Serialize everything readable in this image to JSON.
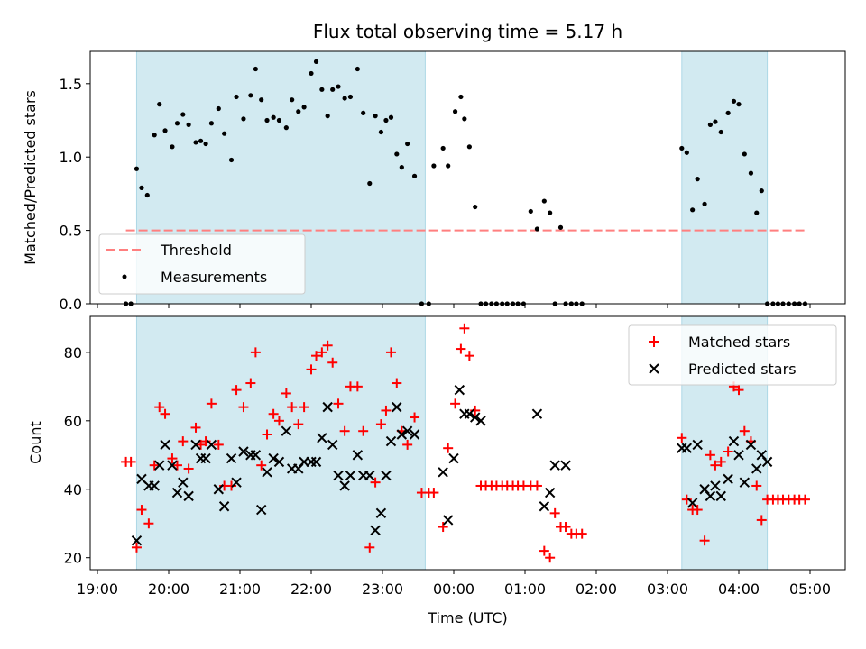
{
  "chart_data": [
    {
      "type": "scatter",
      "title": "Flux total observing time = 5.17 h",
      "xlabel": "",
      "ylabel": "Matched/Predicted stars",
      "ylim": [
        0,
        1.72
      ],
      "xlim": [
        19.0,
        5.5
      ],
      "yticks": [
        "0.0",
        "0.5",
        "1.0",
        "1.5"
      ],
      "ytick_values": [
        0,
        0.5,
        1.0,
        1.5
      ],
      "shaded_intervals_hours": [
        [
          19.55,
          23.6
        ],
        [
          27.2,
          28.4
        ]
      ],
      "threshold": {
        "name": "Threshold",
        "value": 0.5,
        "x_start": 19.4,
        "x_end": 28.95,
        "color": "#ff7f7f"
      },
      "series": [
        {
          "name": "Measurements",
          "color": "#000000",
          "x": [
            19.4,
            19.47,
            19.55,
            19.62,
            19.7,
            19.8,
            19.87,
            19.95,
            20.05,
            20.12,
            20.2,
            20.28,
            20.38,
            20.45,
            20.52,
            20.6,
            20.7,
            20.78,
            20.88,
            20.95,
            21.05,
            21.15,
            21.22,
            21.3,
            21.38,
            21.47,
            21.55,
            21.65,
            21.73,
            21.82,
            21.9,
            22.0,
            22.07,
            22.15,
            22.23,
            22.3,
            22.38,
            22.47,
            22.55,
            22.65,
            22.73,
            22.82,
            22.9,
            22.98,
            23.05,
            23.12,
            23.2,
            23.27,
            23.35,
            23.45,
            23.55,
            23.65,
            23.72,
            23.85,
            23.92,
            24.02,
            24.1,
            24.15,
            24.22,
            24.3,
            24.38,
            24.45,
            24.53,
            24.6,
            24.68,
            24.75,
            24.83,
            24.9,
            24.98,
            25.08,
            25.17,
            25.27,
            25.35,
            25.42,
            25.5,
            25.57,
            25.65,
            25.72,
            25.8,
            27.2,
            27.27,
            27.35,
            27.42,
            27.52,
            27.6,
            27.67,
            27.75,
            27.85,
            27.93,
            28.0,
            28.08,
            28.17,
            28.25,
            28.32,
            28.4,
            28.48,
            28.55,
            28.62,
            28.7,
            28.78,
            28.85,
            28.93
          ],
          "y": [
            0,
            0,
            0.92,
            0.79,
            0.74,
            1.15,
            1.36,
            1.18,
            1.07,
            1.23,
            1.29,
            1.22,
            1.1,
            1.11,
            1.09,
            1.23,
            1.33,
            1.16,
            0.98,
            1.41,
            1.26,
            1.42,
            1.6,
            1.39,
            1.25,
            1.27,
            1.25,
            1.2,
            1.39,
            1.31,
            1.34,
            1.57,
            1.65,
            1.46,
            1.28,
            1.46,
            1.48,
            1.4,
            1.41,
            1.6,
            1.3,
            0.82,
            1.28,
            1.17,
            1.25,
            1.27,
            1.02,
            0.93,
            1.09,
            0.87,
            0,
            0,
            0.94,
            1.06,
            0.94,
            1.31,
            1.41,
            1.26,
            1.07,
            0.66,
            0,
            0,
            0,
            0,
            0,
            0,
            0,
            0,
            0,
            0.63,
            0.51,
            0.7,
            0.62,
            0,
            0.52,
            0,
            0,
            0,
            0,
            1.06,
            1.03,
            0.64,
            0.85,
            0.68,
            1.22,
            1.24,
            1.17,
            1.3,
            1.38,
            1.36,
            1.02,
            0.89,
            0.62,
            0.77,
            0,
            0,
            0,
            0,
            0,
            0,
            0,
            0
          ]
        }
      ],
      "legend": [
        "Threshold",
        "Measurements"
      ]
    },
    {
      "type": "scatter",
      "title": "",
      "xlabel": "Time (UTC)",
      "ylabel": "Count",
      "ylim": [
        16.5,
        90.5
      ],
      "xlim": [
        19.0,
        5.5
      ],
      "yticks": [
        "20",
        "40",
        "60",
        "80"
      ],
      "ytick_values": [
        20,
        40,
        60,
        80
      ],
      "xticks": [
        "19:00",
        "20:00",
        "21:00",
        "22:00",
        "23:00",
        "00:00",
        "01:00",
        "02:00",
        "03:00",
        "04:00",
        "05:00"
      ],
      "xtick_hours": [
        19,
        20,
        21,
        22,
        23,
        24,
        25,
        26,
        27,
        28,
        29
      ],
      "shaded_intervals_hours": [
        [
          19.55,
          23.6
        ],
        [
          27.2,
          28.4
        ]
      ],
      "series": [
        {
          "name": "Matched stars",
          "color": "#ff0000",
          "marker": "+",
          "x": [
            19.4,
            19.47,
            19.55,
            19.62,
            19.72,
            19.8,
            19.87,
            19.95,
            20.05,
            20.12,
            20.2,
            20.28,
            20.38,
            20.45,
            20.52,
            20.6,
            20.7,
            20.78,
            20.88,
            20.95,
            21.05,
            21.15,
            21.22,
            21.3,
            21.38,
            21.47,
            21.55,
            21.65,
            21.73,
            21.82,
            21.9,
            22.0,
            22.07,
            22.15,
            22.23,
            22.3,
            22.38,
            22.47,
            22.55,
            22.65,
            22.73,
            22.82,
            22.9,
            22.98,
            23.05,
            23.12,
            23.2,
            23.27,
            23.35,
            23.45,
            23.55,
            23.65,
            23.72,
            23.85,
            23.92,
            24.02,
            24.1,
            24.15,
            24.22,
            24.3,
            24.38,
            24.45,
            24.53,
            24.6,
            24.68,
            24.75,
            24.83,
            24.9,
            24.98,
            25.08,
            25.17,
            25.27,
            25.35,
            25.42,
            25.5,
            25.57,
            25.65,
            25.72,
            25.8,
            27.2,
            27.27,
            27.35,
            27.42,
            27.52,
            27.6,
            27.67,
            27.75,
            27.85,
            27.93,
            28.0,
            28.08,
            28.17,
            28.25,
            28.32,
            28.4,
            28.48,
            28.55,
            28.62,
            28.7,
            28.78,
            28.85,
            28.93
          ],
          "y": [
            48,
            48,
            23,
            34,
            30,
            47,
            64,
            62,
            49,
            47,
            54,
            46,
            58,
            53,
            54,
            65,
            53,
            41,
            41,
            69,
            64,
            71,
            80,
            47,
            56,
            62,
            60,
            68,
            64,
            59,
            64,
            75,
            79,
            80,
            82,
            77,
            65,
            57,
            70,
            70,
            57,
            23,
            42,
            59,
            63,
            80,
            71,
            57,
            53,
            61,
            39,
            39,
            39,
            29,
            52,
            65,
            81,
            87,
            79,
            63,
            41,
            41,
            41,
            41,
            41,
            41,
            41,
            41,
            41,
            41,
            41,
            22,
            20,
            33,
            29,
            29,
            27,
            27,
            27,
            55,
            37,
            34,
            34,
            25,
            50,
            47,
            48,
            51,
            70,
            69,
            57,
            54,
            41,
            31,
            37,
            37,
            37,
            37,
            37,
            37,
            37,
            37
          ]
        },
        {
          "name": "Predicted stars",
          "color": "#000000",
          "marker": "x",
          "x": [
            19.55,
            19.62,
            19.72,
            19.8,
            19.87,
            19.95,
            20.05,
            20.12,
            20.2,
            20.28,
            20.38,
            20.45,
            20.52,
            20.6,
            20.7,
            20.78,
            20.88,
            20.95,
            21.05,
            21.15,
            21.22,
            21.3,
            21.38,
            21.47,
            21.55,
            21.65,
            21.73,
            21.82,
            21.9,
            22.0,
            22.07,
            22.15,
            22.23,
            22.3,
            22.38,
            22.47,
            22.55,
            22.65,
            22.73,
            22.82,
            22.9,
            22.98,
            23.05,
            23.12,
            23.2,
            23.27,
            23.35,
            23.45,
            23.85,
            23.92,
            24.0,
            24.08,
            24.15,
            24.22,
            24.3,
            24.38,
            25.17,
            25.27,
            25.35,
            25.42,
            25.57,
            27.2,
            27.27,
            27.35,
            27.42,
            27.52,
            27.6,
            27.67,
            27.75,
            27.85,
            27.93,
            28.0,
            28.08,
            28.17,
            28.25,
            28.32,
            28.4
          ],
          "y": [
            25,
            43,
            41,
            41,
            47,
            53,
            47,
            39,
            42,
            38,
            53,
            49,
            49,
            53,
            40,
            35,
            49,
            42,
            51,
            50,
            50,
            34,
            45,
            49,
            48,
            57,
            46,
            46,
            48,
            48,
            48,
            55,
            64,
            53,
            44,
            41,
            44,
            50,
            44,
            44,
            28,
            33,
            44,
            54,
            64,
            56,
            57,
            56,
            45,
            31,
            49,
            69,
            62,
            62,
            61,
            60,
            62,
            35,
            39,
            47,
            47,
            52,
            52,
            36,
            53,
            40,
            38,
            41,
            38,
            43,
            54,
            50,
            42,
            53,
            46,
            50,
            48
          ]
        }
      ],
      "legend": [
        "Matched stars",
        "Predicted stars"
      ]
    }
  ],
  "colors": {
    "shade": "#add8e6",
    "threshold": "#ff7f7f",
    "matched": "#ff0000",
    "predicted": "#000000"
  }
}
